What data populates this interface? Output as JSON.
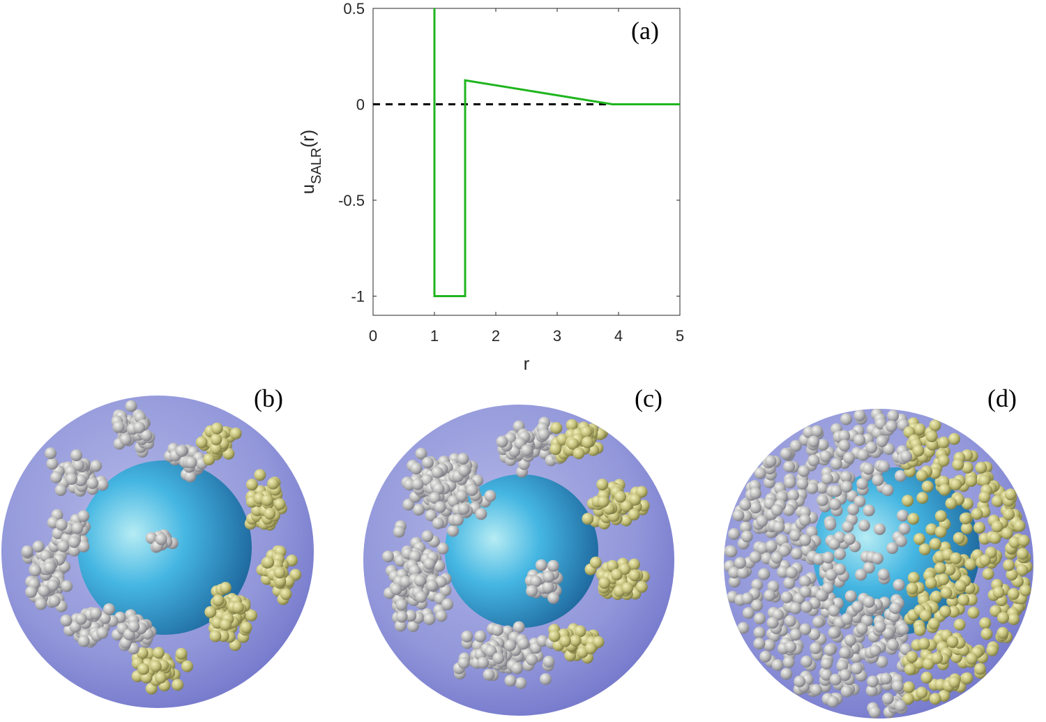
{
  "chart_data": {
    "type": "line",
    "panel_label": "(a)",
    "xlabel": "r",
    "ylabel_main": "u",
    "ylabel_sub": "SALR",
    "ylabel_tail": "(r)",
    "xlim": [
      0,
      5
    ],
    "ylim": [
      -1.1,
      0.5
    ],
    "xticks": [
      0,
      1,
      2,
      3,
      4,
      5
    ],
    "xtick_labels": [
      "0",
      "1",
      "2",
      "3",
      "4",
      "5"
    ],
    "yticks": [
      0.5,
      0,
      -0.5,
      -1
    ],
    "ytick_labels": [
      "0.5",
      "0",
      "-0.5",
      "-1"
    ],
    "grid": false,
    "series": [
      {
        "color": "#1fb51f",
        "style": "solid",
        "x": [
          1,
          1,
          1.5,
          1.5,
          3.9,
          5
        ],
        "y": [
          0.5,
          -1,
          -1,
          0.125,
          0,
          0
        ]
      },
      {
        "color": "#000000",
        "style": "dashed",
        "x": [
          0,
          5
        ],
        "y": [
          0,
          0
        ]
      }
    ]
  },
  "snapshots": [
    {
      "label": "(b)"
    },
    {
      "label": "(c)"
    },
    {
      "label": "(d)"
    }
  ]
}
